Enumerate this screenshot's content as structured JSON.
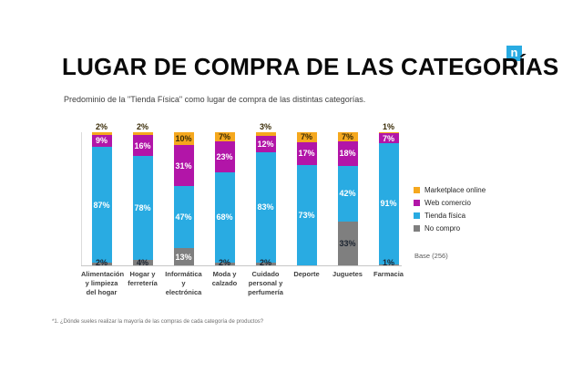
{
  "header": {
    "title": "LUGAR DE COMPRA DE LAS CATEGORÍAS",
    "subtitle": "Predominio de la \"Tienda Física\" como lugar de compra de las distintas categorías.",
    "logo_letter": "n"
  },
  "chart_data": {
    "type": "bar",
    "stacked": true,
    "unit": "%",
    "ylim": [
      0,
      100
    ],
    "grid": false,
    "legend_position": "right",
    "categories": [
      "Alimentación y limpieza del hogar",
      "Hogar y ferretería",
      "Informática y electrónica",
      "Moda y calzado",
      "Cuidado personal y perfumería",
      "Deporte",
      "Juguetes",
      "Farmacia"
    ],
    "series": [
      {
        "name": "No compro",
        "color": "#7f7f7f",
        "values": [
          2,
          4,
          13,
          2,
          2,
          null,
          33,
          1
        ]
      },
      {
        "name": "Tienda física",
        "color": "#29abe2",
        "values": [
          87,
          78,
          47,
          68,
          83,
          73,
          42,
          91
        ]
      },
      {
        "name": "Web comercio",
        "color": "#b215a8",
        "values": [
          9,
          16,
          31,
          23,
          12,
          17,
          18,
          7
        ]
      },
      {
        "name": "Marketplace online",
        "color": "#f5a81e",
        "values": [
          2,
          2,
          10,
          7,
          3,
          7,
          7,
          1
        ]
      }
    ],
    "legend": [
      "Marketplace online",
      "Web comercio",
      "Tienda física",
      "No compro"
    ],
    "base_note": "Base (256)"
  },
  "footnote": "*1. ¿Dónde sueles realizar la mayoría de las compras de cada categoría de productos?"
}
